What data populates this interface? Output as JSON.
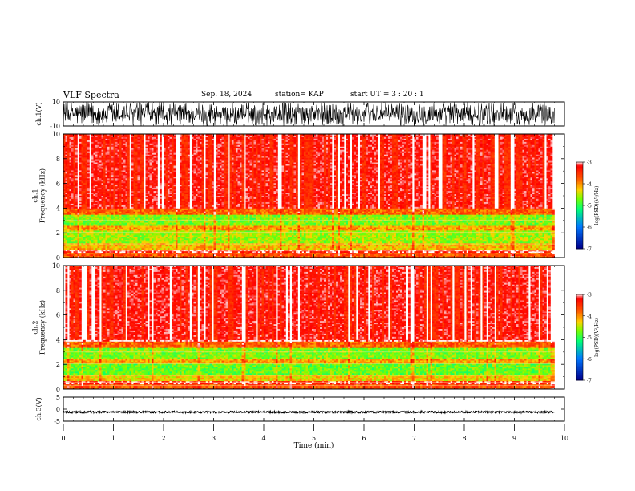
{
  "header": {
    "title": "VLF Spectra",
    "date": "Sep. 18, 2024",
    "station": "station= KAP",
    "start_ut": "start  UT =   3 : 20 : 1"
  },
  "colorscale": {
    "label": "log(PSD)(V²/Hz)",
    "ticks": [
      "-3",
      "-4",
      "-5",
      "-6",
      "-7"
    ],
    "colors": [
      "#ff0000",
      "#ff8c00",
      "#ffff00",
      "#00ff00",
      "#00ffff",
      "#0000ff",
      "#000090"
    ]
  },
  "chart_data": [
    {
      "type": "line",
      "id": "ch1",
      "ylabel": "ch.1(V)",
      "yticks": [
        "10",
        "-10"
      ],
      "ylim": [
        -10,
        10
      ],
      "xlim": [
        0,
        10
      ],
      "description_values": {
        "range_min": -10,
        "range_max": 10,
        "active_until_min": 9.8
      }
    },
    {
      "type": "heatmap",
      "id": "spec1",
      "ylabel": "ch.1\nFrequency (kHz)",
      "yticks": [
        "0",
        "2",
        "4",
        "6",
        "8",
        "10"
      ],
      "ylim": [
        0,
        10
      ],
      "xlim": [
        0,
        10
      ],
      "data_until_min": 9.8,
      "bands": [
        {
          "f0": 0.0,
          "f1": 0.4,
          "level": -3.7
        },
        {
          "f0": 0.4,
          "f1": 0.7,
          "level": -3.2
        },
        {
          "f0": 0.7,
          "f1": 1.2,
          "level": -4.2
        },
        {
          "f0": 1.2,
          "f1": 2.2,
          "level": -4.6
        },
        {
          "f0": 2.2,
          "f1": 2.6,
          "level": -4.1
        },
        {
          "f0": 2.6,
          "f1": 3.5,
          "level": -4.7
        },
        {
          "f0": 3.5,
          "f1": 4.0,
          "level": -3.8
        },
        {
          "f0": 4.0,
          "f1": 10.0,
          "level": -3.0
        }
      ]
    },
    {
      "type": "heatmap",
      "id": "spec2",
      "ylabel": "ch.2\nFrequency (kHz)",
      "yticks": [
        "0",
        "2",
        "4",
        "6",
        "8",
        "10"
      ],
      "ylim": [
        0,
        10
      ],
      "xlim": [
        0,
        10
      ],
      "data_until_min": 9.8,
      "bands": [
        {
          "f0": 0.0,
          "f1": 0.4,
          "level": -3.7
        },
        {
          "f0": 0.4,
          "f1": 0.7,
          "level": -3.2
        },
        {
          "f0": 0.7,
          "f1": 1.2,
          "level": -4.3
        },
        {
          "f0": 1.2,
          "f1": 2.1,
          "level": -4.8
        },
        {
          "f0": 2.1,
          "f1": 2.5,
          "level": -4.1
        },
        {
          "f0": 2.5,
          "f1": 3.3,
          "level": -4.7
        },
        {
          "f0": 3.3,
          "f1": 3.8,
          "level": -3.8
        },
        {
          "f0": 3.8,
          "f1": 10.0,
          "level": -3.0
        }
      ]
    },
    {
      "type": "line",
      "id": "ch3",
      "ylabel": "ch.3(V)",
      "yticks": [
        "5",
        "0",
        "-5"
      ],
      "ylim": [
        -5,
        5
      ],
      "xlim": [
        0,
        10
      ],
      "xlabel": "Time (min)",
      "xticks": [
        "0",
        "1",
        "2",
        "3",
        "4",
        "5",
        "6",
        "7",
        "8",
        "9",
        "10"
      ],
      "description_values": {
        "center": -1.2,
        "amplitude": 0.4
      }
    }
  ]
}
